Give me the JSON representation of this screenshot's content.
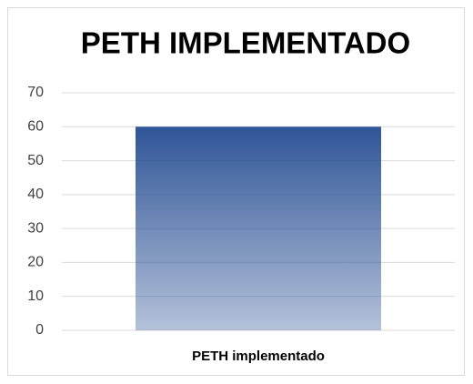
{
  "chart_data": {
    "type": "bar",
    "title": "PETH IMPLEMENTADO",
    "categories": [
      "PETH implementado"
    ],
    "values": [
      60
    ],
    "color": "#2f5597",
    "ylim": [
      0,
      70
    ],
    "yticks": [
      0,
      10,
      20,
      30,
      40,
      50,
      60,
      70
    ],
    "grid": true
  }
}
